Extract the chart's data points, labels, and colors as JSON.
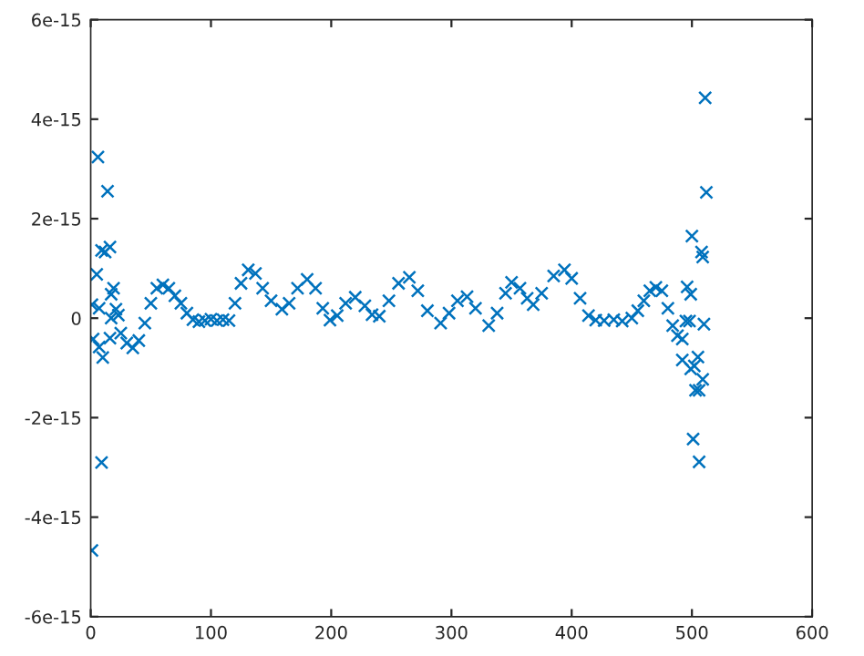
{
  "chart_data": {
    "type": "scatter",
    "marker": "cross",
    "grid": false,
    "xlim": [
      0,
      600
    ],
    "xticks": [
      0,
      100,
      200,
      300,
      400,
      500,
      600
    ],
    "ylim": [
      -6e-15,
      6e-15
    ],
    "yticks": [
      {
        "value": -6e-15,
        "label": "-6e-15"
      },
      {
        "value": -4e-15,
        "label": "-4e-15"
      },
      {
        "value": -2e-15,
        "label": "-2e-15"
      },
      {
        "value": 0,
        "label": "0"
      },
      {
        "value": 2e-15,
        "label": "2e-15"
      },
      {
        "value": 4e-15,
        "label": "4e-15"
      },
      {
        "value": 6e-15,
        "label": "6e-15"
      }
    ],
    "series": [
      {
        "color": "#0072bd",
        "x": [
          1,
          6,
          14,
          9,
          12,
          16,
          5,
          19,
          17,
          1,
          7,
          9,
          10,
          2,
          7,
          17,
          21,
          23,
          16,
          25,
          30,
          35,
          40,
          45,
          50,
          55,
          60,
          65,
          70,
          75,
          80,
          85,
          90,
          95,
          100,
          105,
          110,
          115,
          120,
          125,
          131,
          137,
          143,
          150,
          159,
          165,
          172,
          180,
          187,
          193,
          199,
          205,
          212,
          220,
          228,
          234,
          240,
          248,
          256,
          265,
          272,
          280,
          291,
          298,
          305,
          313,
          320,
          331,
          338,
          345,
          350,
          357,
          363,
          368,
          375,
          385,
          394,
          400,
          407,
          414,
          420,
          427,
          435,
          442,
          450,
          455,
          460,
          465,
          470,
          475,
          480,
          484,
          488,
          492,
          511,
          512,
          500,
          508,
          509,
          496,
          499,
          495,
          498,
          510,
          492,
          505,
          499,
          502,
          509,
          503,
          506,
          501,
          506
        ],
        "values": [
          -4.67e-15,
          3.24e-15,
          2.55e-15,
          1.36e-15,
          1.33e-15,
          1.43e-15,
          8.8e-16,
          6e-16,
          4.8e-16,
          2.7e-16,
          2e-16,
          -2.9e-15,
          -7.9e-16,
          -4.2e-16,
          -5.8e-16,
          0,
          1.8e-16,
          6e-17,
          -4e-16,
          -3e-16,
          -5e-16,
          -6e-16,
          -4.5e-16,
          -1e-16,
          3e-16,
          6e-16,
          6.7e-16,
          6e-16,
          4.5e-16,
          3e-16,
          1e-16,
          -3e-17,
          -7e-17,
          -5e-17,
          -2e-17,
          -5e-17,
          -3e-17,
          -5e-17,
          3e-16,
          7e-16,
          9.7e-16,
          9e-16,
          6e-16,
          3.5e-16,
          1.8e-16,
          3e-16,
          6e-16,
          7.8e-16,
          6e-16,
          2e-16,
          -4e-17,
          5e-17,
          3e-16,
          4.2e-16,
          2.5e-16,
          7e-17,
          4e-17,
          3.5e-16,
          7e-16,
          8.2e-16,
          5.5e-16,
          1.5e-16,
          -1e-16,
          1e-16,
          3.5e-16,
          4.3e-16,
          2e-16,
          -1.5e-16,
          1e-16,
          5e-16,
          7.2e-16,
          6e-16,
          4e-16,
          2.7e-16,
          5e-16,
          8.5e-16,
          9.7e-16,
          8e-16,
          4e-16,
          5e-17,
          -4e-17,
          -5e-17,
          -3e-17,
          -6e-17,
          0,
          1.5e-16,
          3.5e-16,
          5.5e-16,
          6.2e-16,
          5.5e-16,
          2e-16,
          -1.5e-16,
          -3.5e-16,
          -4.2e-16,
          4.43e-15,
          2.53e-15,
          1.65e-15,
          1.33e-15,
          1.23e-15,
          6.3e-16,
          4.8e-16,
          -6e-17,
          -6e-17,
          -1.2e-16,
          -8.4e-16,
          -7.8e-16,
          -1.02e-15,
          -9.6e-16,
          -1.23e-15,
          -1.45e-15,
          -1.45e-15,
          -2.43e-15,
          -2.89e-15
        ]
      }
    ]
  }
}
